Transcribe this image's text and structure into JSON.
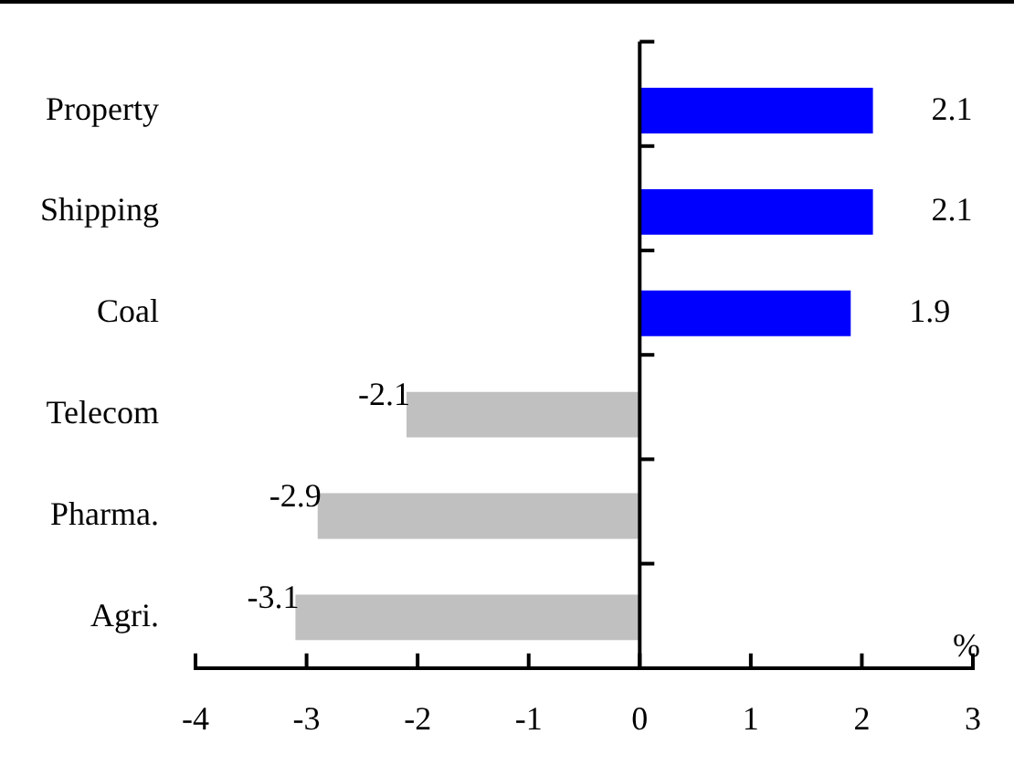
{
  "chart_data": {
    "type": "bar",
    "orientation": "horizontal",
    "categories": [
      "Property",
      "Shipping",
      "Coal",
      "Telecom",
      "Pharma.",
      "Agri."
    ],
    "values": [
      2.1,
      2.1,
      1.9,
      -2.1,
      -2.9,
      -3.1
    ],
    "colors": [
      "#0000ff",
      "#0000ff",
      "#0000ff",
      "#c0c0c0",
      "#c0c0c0",
      "#c0c0c0"
    ],
    "xlim": [
      -4,
      3
    ],
    "xticks": [
      -4,
      -3,
      -2,
      -1,
      0,
      1,
      2,
      3
    ],
    "data_labels": true,
    "legend": false,
    "annotations": [
      "%"
    ]
  }
}
